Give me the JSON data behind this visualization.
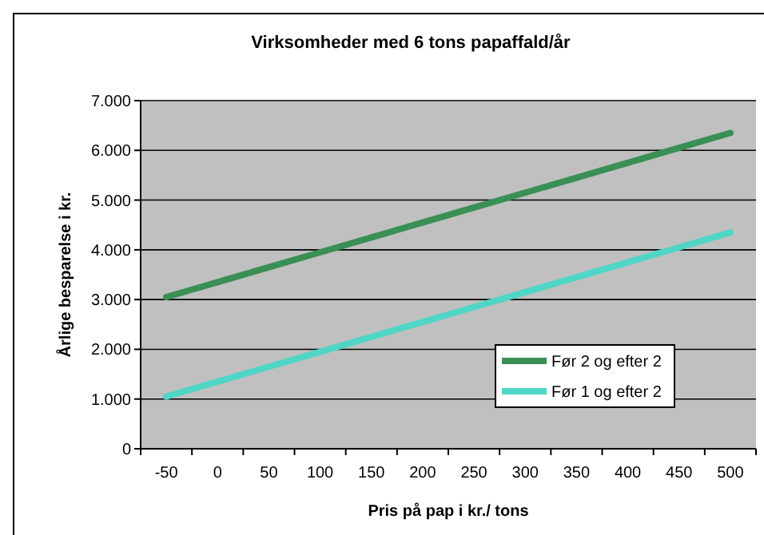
{
  "chart_data": {
    "type": "line",
    "title": "Virksomheder med 6 tons papaffald/år",
    "xlabel": "Pris på pap i kr./ tons",
    "ylabel": "Årlige besparelse i kr.",
    "categories": [
      "-50",
      "0",
      "50",
      "100",
      "150",
      "200",
      "250",
      "300",
      "350",
      "400",
      "450",
      "500"
    ],
    "series": [
      {
        "name": "Før 2 og efter 2",
        "color": "#3a8f55",
        "values": [
          3050,
          3350,
          3650,
          3950,
          4250,
          4550,
          4850,
          5150,
          5450,
          5750,
          6050,
          6350
        ]
      },
      {
        "name": "Før 1 og efter 2",
        "color": "#4fd6c6",
        "values": [
          1050,
          1350,
          1650,
          1950,
          2250,
          2550,
          2850,
          3150,
          3450,
          3750,
          4050,
          4350
        ]
      }
    ],
    "ylim": [
      0,
      7000
    ],
    "yticks": [
      {
        "value": 0,
        "label": "0"
      },
      {
        "value": 1000,
        "label": "1.000"
      },
      {
        "value": 2000,
        "label": "2.000"
      },
      {
        "value": 3000,
        "label": "3.000"
      },
      {
        "value": 4000,
        "label": "4.000"
      },
      {
        "value": 5000,
        "label": "5.000"
      },
      {
        "value": 6000,
        "label": "6.000"
      },
      {
        "value": 7000,
        "label": "7.000"
      }
    ],
    "grid": "y",
    "legend": "bottom right",
    "marker": "none",
    "line_style": "solid"
  }
}
